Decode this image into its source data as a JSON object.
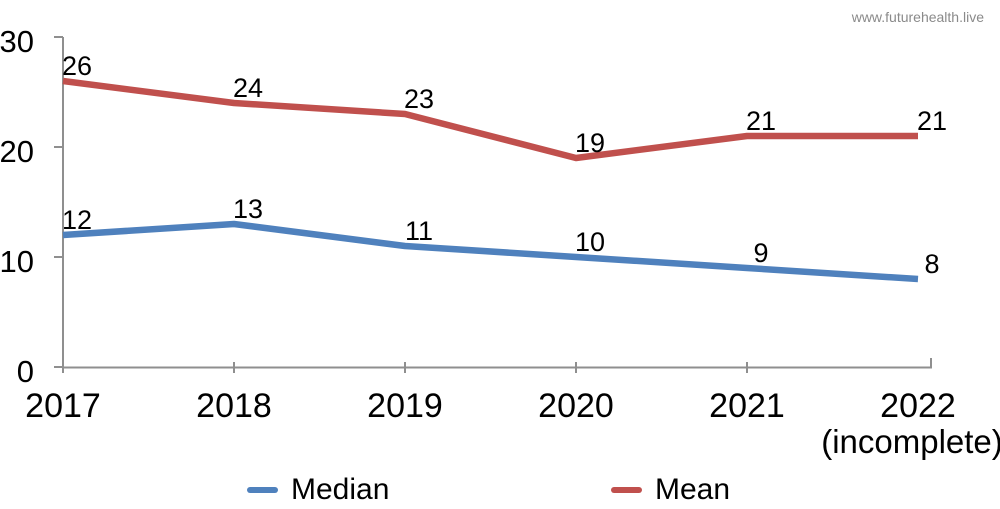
{
  "watermark": {
    "text": "www.futurehealth.live",
    "color": "#8a8a8a"
  },
  "chart_data": {
    "type": "line",
    "title": "",
    "categories": [
      "2017",
      "2018",
      "2019",
      "2020",
      "2021",
      "2022"
    ],
    "x_last_sublabel": "(incomplete)",
    "series": [
      {
        "name": "Median",
        "color": "#4f81bd",
        "values": [
          12,
          13,
          11,
          10,
          9,
          8
        ]
      },
      {
        "name": "Mean",
        "color": "#c0504d",
        "values": [
          26,
          24,
          23,
          19,
          21,
          21
        ]
      }
    ],
    "ylim": [
      0,
      30
    ],
    "yticks": [
      0,
      10,
      20,
      30
    ],
    "grid": false,
    "show_data_labels": true,
    "legend_position": "bottom",
    "axis_color": "#8f8f8f",
    "text_color": "#000000"
  }
}
